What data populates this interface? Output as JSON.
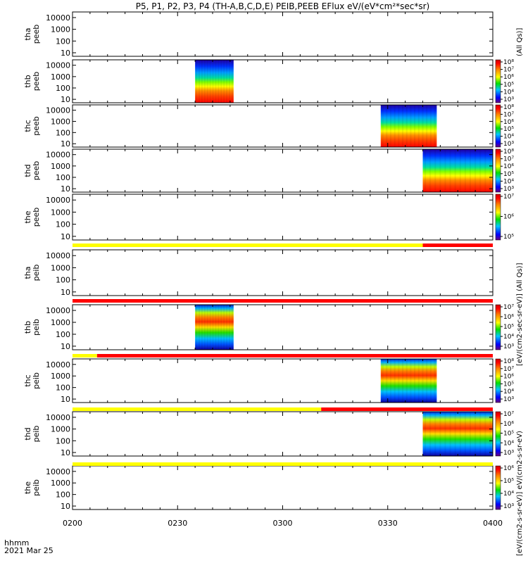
{
  "title": "P5, P1, P2, P3, P4 (TH-A,B,C,D,E) PEIB,PEEB EFlux eV/(eV*cm²*sec*sr)",
  "time_label": "hhmm",
  "date_label": "2021 Mar 25",
  "side_labels": {
    "top": "(All Qs)]",
    "eflux_upper": "eV/(cm2-sec-sr-eV)",
    "bottom": "[eV/(cm2-s-sr-eV)] eV/(cm2-s-sr-eV)",
    "middle": "[eV/(cm2-sec-sr-eV)] (All Qs)]"
  },
  "chart_data": {
    "type": "heatmap",
    "x_ticks": [
      "0200",
      "0230",
      "0300",
      "0330",
      "0400"
    ],
    "x_range": [
      "0200",
      "0400"
    ],
    "y_scale": "log",
    "y_ticks": [
      "10",
      "100",
      "1000",
      "10000"
    ],
    "y_range_eV": [
      5,
      30000
    ],
    "colorscale": "rainbow (purple-blue-green-yellow-red)",
    "panels": [
      {
        "probe": "tha",
        "sensor": "peeb",
        "ylabel": [
          "tha",
          "peeb"
        ],
        "data_window": null,
        "colorbar": null
      },
      {
        "probe": "thb",
        "sensor": "peeb",
        "ylabel": [
          "thb",
          "peeb"
        ],
        "data_window": [
          "0235",
          "0246"
        ],
        "colorbar": {
          "labels": [
            "10⁸",
            "10⁷",
            "10⁶",
            "10⁵",
            "10⁴",
            "10³"
          ]
        }
      },
      {
        "probe": "thc",
        "sensor": "peeb",
        "ylabel": [
          "thc",
          "peeb"
        ],
        "data_window": [
          "0328",
          "0344"
        ],
        "colorbar": {
          "labels": [
            "10⁸",
            "10⁷",
            "10⁶",
            "10⁵",
            "10⁴",
            "10³"
          ]
        }
      },
      {
        "probe": "thd",
        "sensor": "peeb",
        "ylabel": [
          "thd",
          "peeb"
        ],
        "data_window": [
          "0340",
          "0400"
        ],
        "colorbar": {
          "labels": [
            "10⁸",
            "10⁷",
            "10⁶",
            "10⁵",
            "10⁴",
            "10³"
          ]
        }
      },
      {
        "probe": "the",
        "sensor": "peeb",
        "ylabel": [
          "the",
          "peeb"
        ],
        "data_window": null,
        "colorbar": {
          "labels": [
            "10⁷",
            "10⁶",
            "10⁵"
          ]
        }
      },
      {
        "probe": "tha",
        "sensor": "peib",
        "ylabel": [
          "tha",
          "peib"
        ],
        "data_window": null,
        "colorbar": null
      },
      {
        "probe": "thb",
        "sensor": "peib",
        "ylabel": [
          "thb",
          "peib"
        ],
        "data_window": [
          "0235",
          "0246"
        ],
        "colorbar": {
          "labels": [
            "10⁷",
            "10⁶",
            "10⁵",
            "10⁴",
            "10³"
          ]
        }
      },
      {
        "probe": "thc",
        "sensor": "peib",
        "ylabel": [
          "thc",
          "peib"
        ],
        "data_window": [
          "0328",
          "0344"
        ],
        "colorbar": {
          "labels": [
            "10⁸",
            "10⁷",
            "10⁶",
            "10⁵",
            "10⁴",
            "10³"
          ]
        }
      },
      {
        "probe": "thd",
        "sensor": "peib",
        "ylabel": [
          "thd",
          "peib"
        ],
        "data_window": [
          "0340",
          "0400"
        ],
        "colorbar": {
          "labels": [
            "10⁷",
            "10⁶",
            "10⁵",
            "10⁴",
            "10³"
          ]
        }
      },
      {
        "probe": "the",
        "sensor": "peib",
        "ylabel": [
          "the",
          "peib"
        ],
        "data_window": null,
        "colorbar": {
          "labels": [
            "10⁶",
            "10⁵",
            "10⁴",
            "10³"
          ]
        }
      }
    ],
    "mode_bars": [
      {
        "after_panel": 4,
        "segments": [
          {
            "from": "0200",
            "to": "0340",
            "color": "#ffff00"
          },
          {
            "from": "0340",
            "to": "0400",
            "color": "#ff0000"
          }
        ]
      },
      {
        "after_panel": 5,
        "segments": [
          {
            "from": "0200",
            "to": "0400",
            "color": "#ff0000"
          }
        ]
      },
      {
        "after_panel": 6,
        "segments": [
          {
            "from": "0200",
            "to": "0207",
            "color": "#ffff00"
          },
          {
            "from": "0207",
            "to": "0400",
            "color": "#ff0000"
          }
        ]
      },
      {
        "after_panel": 7,
        "segments": [
          {
            "from": "0200",
            "to": "0311",
            "color": "#ffff00"
          },
          {
            "from": "0311",
            "to": "0400",
            "color": "#ff0000"
          }
        ]
      },
      {
        "after_panel": 8,
        "segments": [
          {
            "from": "0200",
            "to": "0400",
            "color": "#ffff00"
          }
        ]
      }
    ]
  }
}
